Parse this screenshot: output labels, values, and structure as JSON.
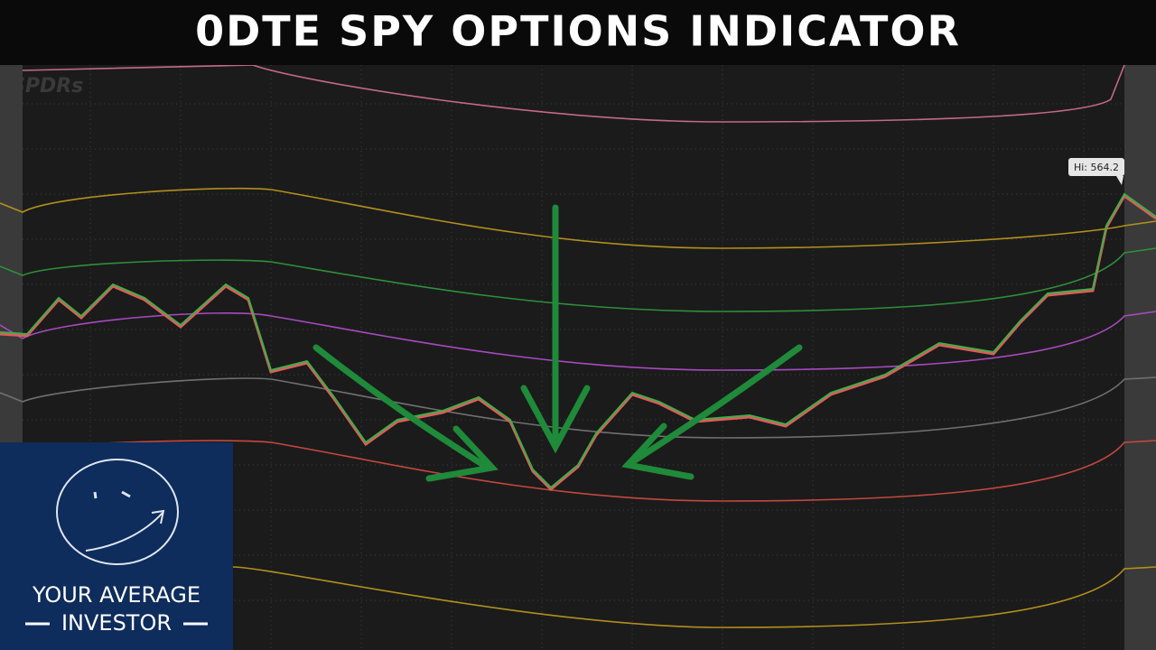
{
  "header": {
    "title": "0DTE SPY OPTIONS INDICATOR"
  },
  "chart": {
    "watermark": "SPDRs",
    "high_label": "Hi: 564.2"
  },
  "logo": {
    "line1": "YOUR AVERAGE",
    "line2": "INVESTOR"
  }
}
